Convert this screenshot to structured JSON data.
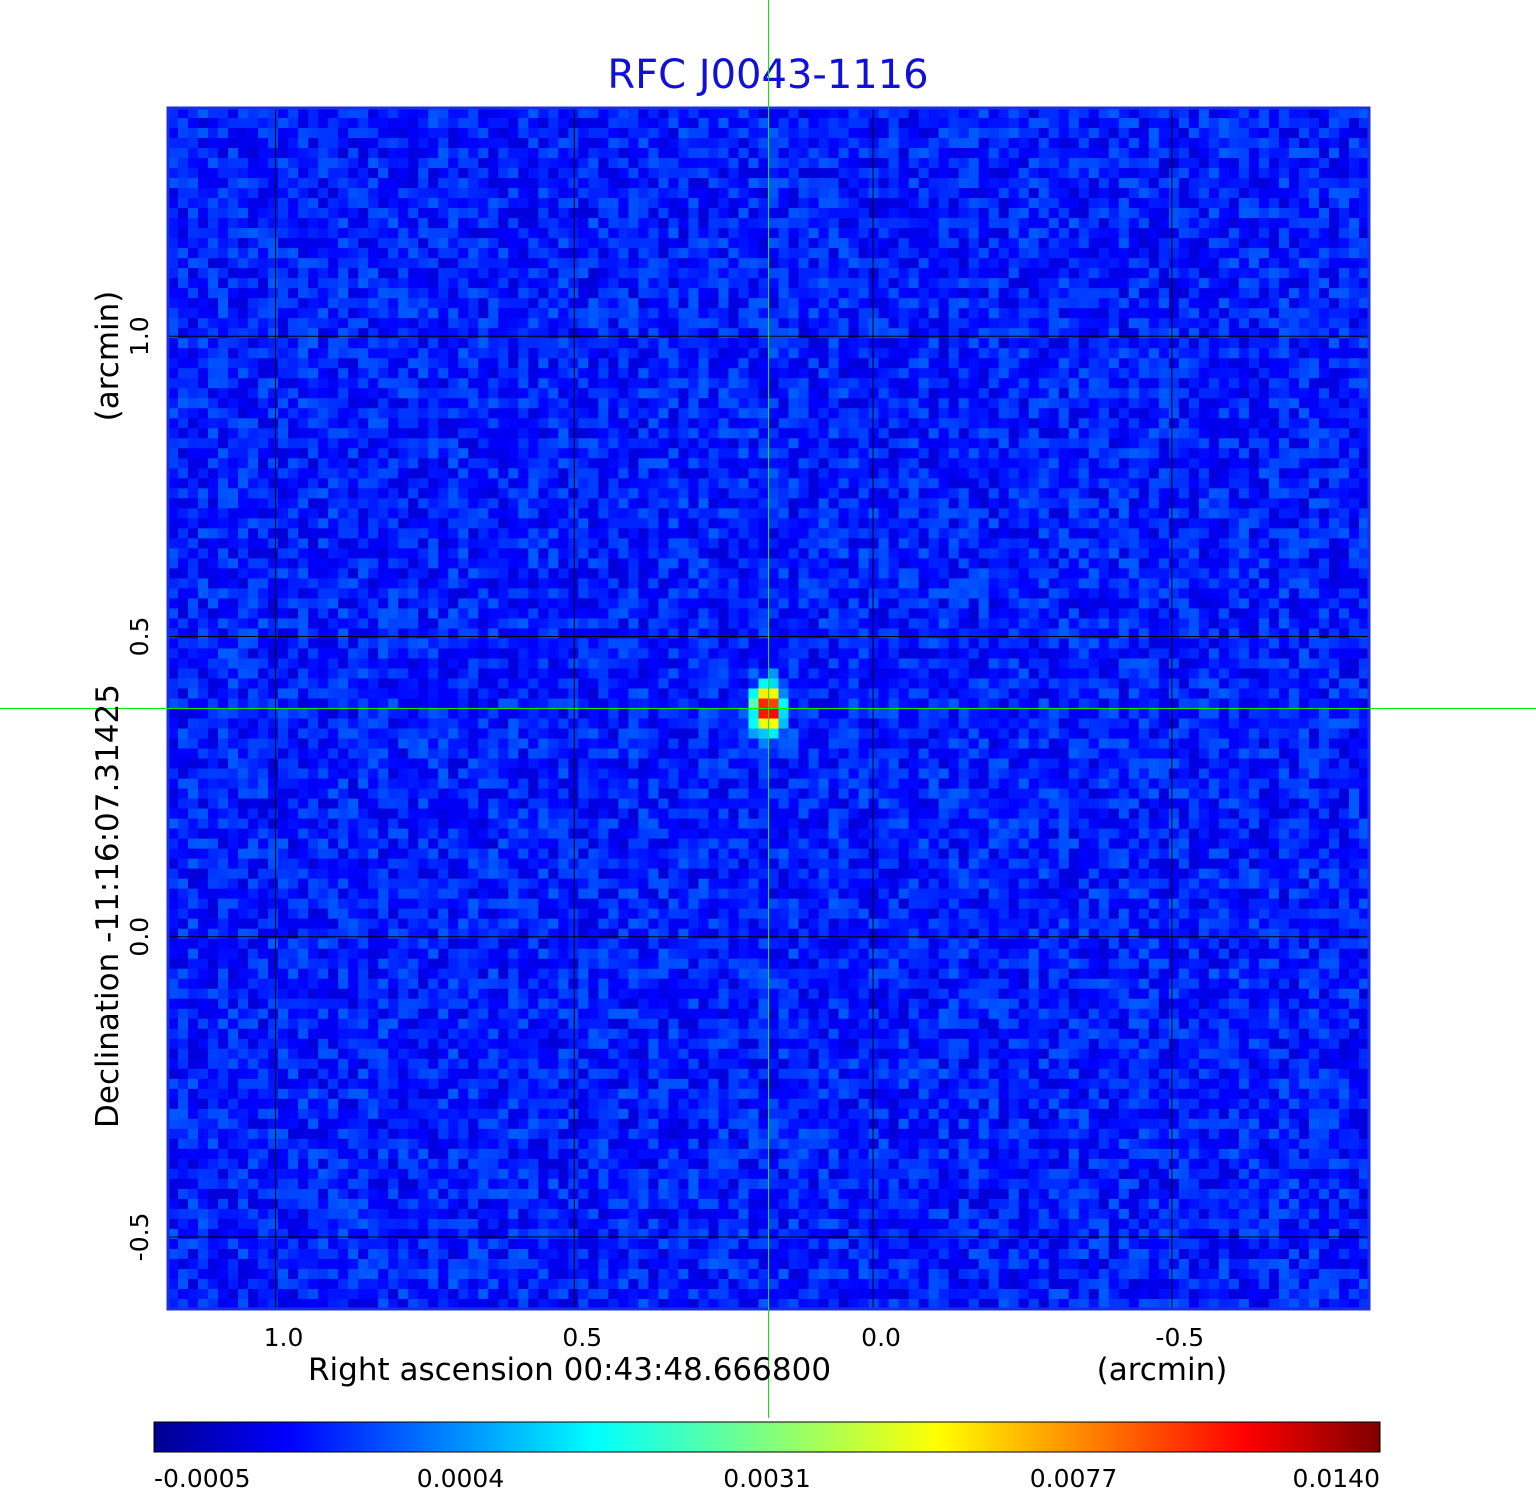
{
  "chart_data": {
    "type": "heatmap",
    "title": "RFC J0043-1116",
    "xlabel": "Right ascension  00:43:48.666800",
    "xlabel_unit": "(arcmin)",
    "ylabel": "Declination  -11:16:07.31425",
    "ylabel_unit": "(arcmin)",
    "x_axis": {
      "direction": "decreasing-right",
      "range": [
        1.18,
        -0.83
      ],
      "ticks": [
        1.0,
        0.5,
        0.0,
        -0.5
      ],
      "tick_labels": [
        "1.0",
        "0.5",
        "0.0",
        "-0.5"
      ]
    },
    "y_axis": {
      "range": [
        -0.62,
        1.38
      ],
      "ticks": [
        -0.5,
        0.0,
        0.5,
        1.0
      ],
      "tick_labels": [
        "-0.5",
        "0.0",
        "0.5",
        "1.0"
      ]
    },
    "grid": true,
    "crosshair": {
      "x": 0.175,
      "y": 0.38,
      "color": "#00ee00"
    },
    "source": {
      "x": 0.175,
      "y": 0.38,
      "peak": 0.014
    },
    "colormap": "jet",
    "colorbar": {
      "position": "bottom",
      "min": -0.0005,
      "max": 0.014,
      "tick_labels": [
        "-0.0005",
        "0.0004",
        "0.0031",
        "0.0077",
        "0.0140"
      ]
    },
    "background_noise_level": 0.0002
  },
  "colors": {
    "title": "#1010d8",
    "frame": "#1a2fe0",
    "grid": "#000000",
    "crosshair": "#00ee00"
  }
}
